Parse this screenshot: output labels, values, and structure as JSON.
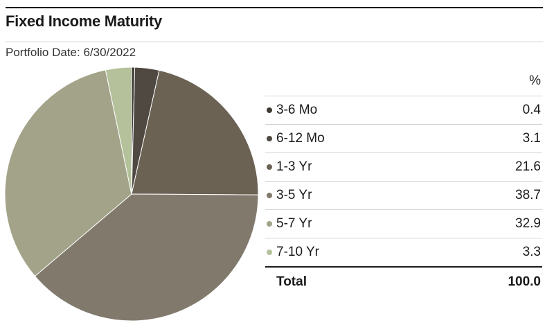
{
  "title": "Fixed Income Maturity",
  "subtitle": "Portfolio Date: 6/30/2022",
  "table": {
    "unit_header": "%",
    "total_label": "Total",
    "total_value": "100.0"
  },
  "chart_data": {
    "type": "pie",
    "categories": [
      "3-6 Mo",
      "6-12 Mo",
      "1-3 Yr",
      "3-5 Yr",
      "5-7 Yr",
      "7-10 Yr"
    ],
    "values": [
      0.4,
      3.1,
      21.6,
      38.7,
      32.9,
      3.3
    ],
    "value_labels": [
      "0.4",
      "3.1",
      "21.6",
      "38.7",
      "32.9",
      "3.3"
    ],
    "colors": [
      "#3d3a32",
      "#4f4942",
      "#6b6254",
      "#817a6c",
      "#a2a389",
      "#b4c19a"
    ],
    "slice_border_color": "#ffffff"
  }
}
